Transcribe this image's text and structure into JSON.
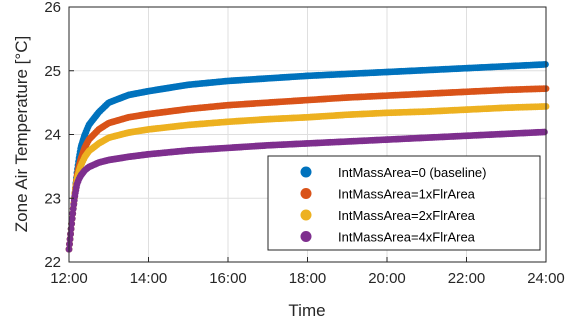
{
  "chart_data": {
    "type": "scatter",
    "title": "",
    "xlabel": "Time",
    "ylabel": "Zone Air Temperature [°C]",
    "xlim": [
      12,
      24
    ],
    "ylim": [
      22,
      26
    ],
    "x_ticks": [
      {
        "value": 12,
        "label": "12:00"
      },
      {
        "value": 14,
        "label": "14:00"
      },
      {
        "value": 16,
        "label": "16:00"
      },
      {
        "value": 18,
        "label": "18:00"
      },
      {
        "value": 20,
        "label": "20:00"
      },
      {
        "value": 22,
        "label": "22:00"
      },
      {
        "value": 24,
        "label": "24:00"
      }
    ],
    "y_ticks": [
      {
        "value": 22,
        "label": "22"
      },
      {
        "value": 23,
        "label": "23"
      },
      {
        "value": 24,
        "label": "24"
      },
      {
        "value": 25,
        "label": "25"
      },
      {
        "value": 26,
        "label": "26"
      }
    ],
    "grid": true,
    "legend_position": "lower-right",
    "series": [
      {
        "name": "IntMassArea=0 (baseline)",
        "color": "#0072BD",
        "points": [
          [
            12.0,
            22.2
          ],
          [
            12.05,
            22.5
          ],
          [
            12.1,
            22.8
          ],
          [
            12.15,
            23.1
          ],
          [
            12.2,
            23.4
          ],
          [
            12.25,
            23.62
          ],
          [
            12.3,
            23.8
          ],
          [
            12.4,
            24.0
          ],
          [
            12.5,
            24.15
          ],
          [
            12.75,
            24.35
          ],
          [
            13.0,
            24.5
          ],
          [
            13.5,
            24.62
          ],
          [
            14.0,
            24.68
          ],
          [
            15.0,
            24.78
          ],
          [
            16.0,
            24.84
          ],
          [
            17.0,
            24.88
          ],
          [
            18.0,
            24.92
          ],
          [
            19.0,
            24.95
          ],
          [
            20.0,
            24.98
          ],
          [
            21.0,
            25.01
          ],
          [
            22.0,
            25.04
          ],
          [
            23.0,
            25.07
          ],
          [
            24.0,
            25.1
          ]
        ]
      },
      {
        "name": "IntMassArea=1xFlrArea",
        "color": "#D95319",
        "points": [
          [
            12.0,
            22.2
          ],
          [
            12.05,
            22.5
          ],
          [
            12.1,
            22.8
          ],
          [
            12.15,
            23.1
          ],
          [
            12.2,
            23.35
          ],
          [
            12.25,
            23.5
          ],
          [
            12.3,
            23.62
          ],
          [
            12.4,
            23.8
          ],
          [
            12.5,
            23.92
          ],
          [
            12.75,
            24.08
          ],
          [
            13.0,
            24.18
          ],
          [
            13.5,
            24.27
          ],
          [
            14.0,
            24.32
          ],
          [
            15.0,
            24.4
          ],
          [
            16.0,
            24.46
          ],
          [
            17.0,
            24.5
          ],
          [
            18.0,
            24.54
          ],
          [
            19.0,
            24.58
          ],
          [
            20.0,
            24.61
          ],
          [
            21.0,
            24.64
          ],
          [
            22.0,
            24.67
          ],
          [
            23.0,
            24.7
          ],
          [
            24.0,
            24.72
          ]
        ]
      },
      {
        "name": "IntMassArea=2xFlrArea",
        "color": "#EDB120",
        "points": [
          [
            12.0,
            22.2
          ],
          [
            12.05,
            22.5
          ],
          [
            12.1,
            22.8
          ],
          [
            12.15,
            23.1
          ],
          [
            12.2,
            23.3
          ],
          [
            12.25,
            23.42
          ],
          [
            12.3,
            23.52
          ],
          [
            12.4,
            23.65
          ],
          [
            12.5,
            23.74
          ],
          [
            12.75,
            23.86
          ],
          [
            13.0,
            23.95
          ],
          [
            13.5,
            24.03
          ],
          [
            14.0,
            24.08
          ],
          [
            15.0,
            24.15
          ],
          [
            16.0,
            24.2
          ],
          [
            17.0,
            24.24
          ],
          [
            18.0,
            24.27
          ],
          [
            19.0,
            24.31
          ],
          [
            20.0,
            24.34
          ],
          [
            21.0,
            24.36
          ],
          [
            22.0,
            24.39
          ],
          [
            23.0,
            24.42
          ],
          [
            24.0,
            24.44
          ]
        ]
      },
      {
        "name": "IntMassArea=4xFlrArea",
        "color": "#7E2F8E",
        "points": [
          [
            12.0,
            22.2
          ],
          [
            12.05,
            22.5
          ],
          [
            12.1,
            22.8
          ],
          [
            12.15,
            23.05
          ],
          [
            12.2,
            23.22
          ],
          [
            12.25,
            23.3
          ],
          [
            12.3,
            23.36
          ],
          [
            12.4,
            23.44
          ],
          [
            12.5,
            23.49
          ],
          [
            12.75,
            23.56
          ],
          [
            13.0,
            23.6
          ],
          [
            13.5,
            23.65
          ],
          [
            14.0,
            23.69
          ],
          [
            15.0,
            23.75
          ],
          [
            16.0,
            23.79
          ],
          [
            17.0,
            23.83
          ],
          [
            18.0,
            23.86
          ],
          [
            19.0,
            23.89
          ],
          [
            20.0,
            23.92
          ],
          [
            21.0,
            23.95
          ],
          [
            22.0,
            23.98
          ],
          [
            23.0,
            24.01
          ],
          [
            24.0,
            24.04
          ]
        ]
      }
    ]
  }
}
